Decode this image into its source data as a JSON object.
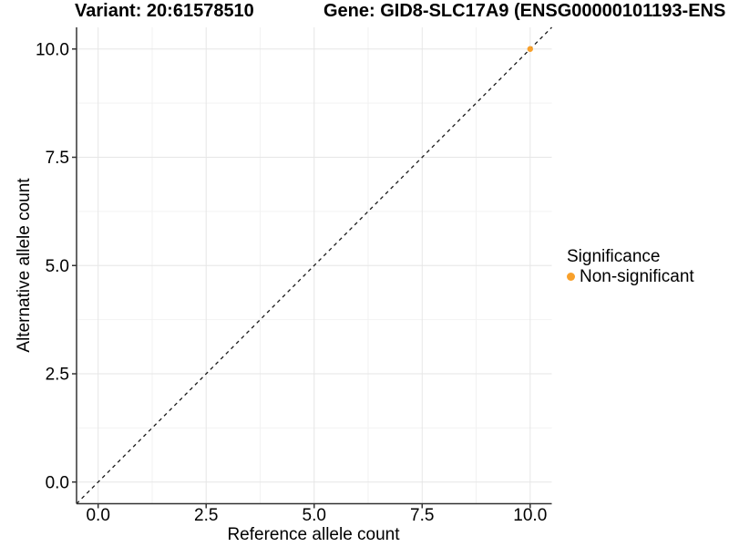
{
  "figure": {
    "title_left": "Variant: 20:61578510",
    "title_right": "Gene: GID8-SLC17A9 (ENSG00000101193-ENS",
    "background": "#FFFFFF"
  },
  "chart_data": {
    "type": "scatter",
    "xlabel": "Reference allele count",
    "ylabel": "Alternative allele count",
    "xlim": [
      -0.5,
      10.5
    ],
    "ylim": [
      -0.5,
      10.5
    ],
    "xticks": {
      "values": [
        0,
        2.5,
        5,
        7.5,
        10
      ],
      "labels": [
        "0.0",
        "2.5",
        "5.0",
        "7.5",
        "10.0"
      ]
    },
    "yticks": {
      "values": [
        0,
        2.5,
        5,
        7.5,
        10
      ],
      "labels": [
        "0.0",
        "2.5",
        "5.0",
        "7.5",
        "10.0"
      ]
    },
    "minor_xticks": [
      1.25,
      3.75,
      6.25,
      8.75
    ],
    "minor_yticks": [
      1.25,
      3.75,
      6.25,
      8.75
    ],
    "grid": "major+minor",
    "series": [
      {
        "name": "Non-significant",
        "color": "#F8A02B",
        "points": [
          {
            "x": 10,
            "y": 10
          }
        ]
      }
    ],
    "reference_line": {
      "type": "identity",
      "from": [
        -0.5,
        -0.5
      ],
      "to": [
        10.5,
        10.5
      ],
      "style": "dashed",
      "color": "#1A1A1A"
    },
    "legend": {
      "title": "Significance",
      "position": "right",
      "items": [
        {
          "label": "Non-significant",
          "color": "#F8A02B"
        }
      ]
    },
    "colors": {
      "grid_major": "#E6E6E6",
      "grid_minor": "#F2F2F2",
      "axis": "#333333",
      "tick": "#333333",
      "text": "#000000"
    }
  }
}
